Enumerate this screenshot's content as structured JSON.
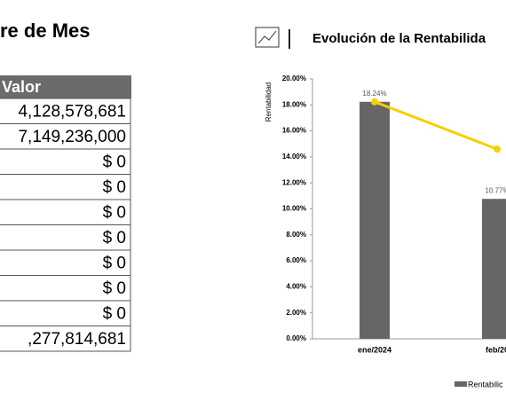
{
  "report": {
    "title": "re de Mes",
    "table": {
      "header": "Valor",
      "rows": [
        "4,128,578,681",
        "7,149,236,000",
        "$ 0",
        "$ 0",
        "$ 0",
        "$ 0",
        "$ 0",
        "$ 0",
        "$ 0",
        ",277,814,681"
      ]
    }
  },
  "chart_data": {
    "type": "bar",
    "title": "Evolución de la Rentabilida",
    "y_label": "Rentabilidad",
    "categories": [
      "ene/2024",
      "feb/20"
    ],
    "series": [
      {
        "name": "Rentabilic",
        "color": "#666666",
        "values": [
          18.24,
          10.77
        ],
        "value_labels": [
          "18.24%",
          "10.77%"
        ]
      },
      {
        "type": "line",
        "color": "#f5d000",
        "values": [
          18.24,
          14.6
        ]
      }
    ],
    "ylim": [
      0,
      20
    ],
    "yticks": [
      {
        "value": 0,
        "label": "0.00%"
      },
      {
        "value": 2,
        "label": "2.00%"
      },
      {
        "value": 4,
        "label": "4.00%"
      },
      {
        "value": 6,
        "label": "6.00%"
      },
      {
        "value": 8,
        "label": "8.00%"
      },
      {
        "value": 10,
        "label": "10.00%"
      },
      {
        "value": 12,
        "label": "12.00%"
      },
      {
        "value": 14,
        "label": "14.00%"
      },
      {
        "value": 16,
        "label": "16.00%"
      },
      {
        "value": 18,
        "label": "18.00%"
      },
      {
        "value": 20,
        "label": "20.00%"
      }
    ]
  }
}
